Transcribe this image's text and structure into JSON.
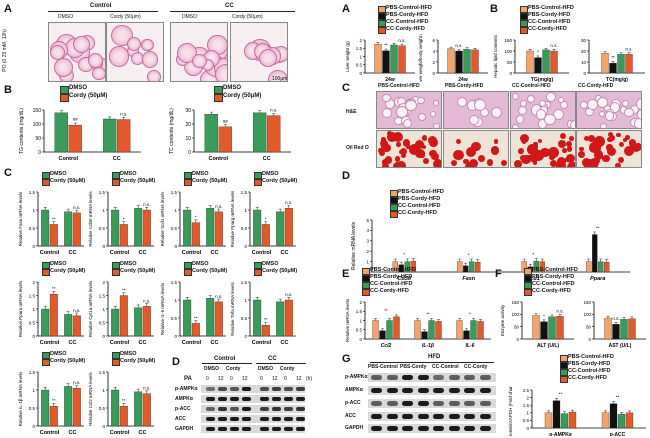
{
  "colors": {
    "dmso": "#3a9a5a",
    "cordy": "#e05a2b",
    "pbs_control": "#f4a46a",
    "pbs_cordy": "#111111",
    "cc_control": "#3a9a5a",
    "cc_cordy": "#e05a2b",
    "he_stain": "#c86ca6",
    "oil_red": "#d01818"
  },
  "left": {
    "A": {
      "label": "A",
      "header_control": "Control",
      "header_cc": "CC",
      "cols": [
        "DMSO",
        "Cordy (50μm)",
        "DMSO",
        "Cordy (50μm)"
      ],
      "ylabel": "PO (0.25 mM, 12h)",
      "scale": "100μm"
    },
    "B": {
      "label": "B",
      "legend": [
        "DMSO",
        "Cordy (50μM)"
      ]
    },
    "C": {
      "label": "C",
      "legend": [
        "DMSO",
        "Cordy (50μM)"
      ]
    },
    "D": {
      "label": "D",
      "header_control": "Control",
      "header_cc": "CC",
      "cond_row": [
        "DMSO",
        "Cordy",
        "DMSO",
        "Cordy"
      ],
      "pa_label": "PA",
      "pa_times": [
        "0",
        "12",
        "0",
        "12",
        "0",
        "12",
        "0",
        "12"
      ],
      "unit": "(h)",
      "rows": [
        "p-AMPKα",
        "AMPKα",
        "p-ACC",
        "ACC",
        "GAPDH"
      ]
    }
  },
  "right": {
    "A": {
      "label": "A",
      "legend": [
        "PBS-Control-HFD",
        "PBS-Cordy-HFD",
        "CC-Control-HFD",
        "CC-Cordy-HFD"
      ]
    },
    "B": {
      "label": "B",
      "legend": [
        "PBS-Control-HFD",
        "PBS-Cordy-HFD",
        "CC-Control-HFD",
        "CC-Cordy-HFD"
      ]
    },
    "C": {
      "label": "C",
      "cols": [
        "PBS-Control-HFD",
        "PBS-Cordy-HFD",
        "CC-Control-HFD",
        "CC-Cordy-HFD"
      ],
      "rows": [
        "H&E",
        "Oil Red O"
      ]
    },
    "D": {
      "label": "D",
      "legend": [
        "PBS-Control-HFD",
        "PBS-Cordy-HFD",
        "CC-Control-HFD",
        "CC-Cordy-HFD"
      ]
    },
    "E": {
      "label": "E",
      "legend": [
        "PBS-Control-HFD",
        "PBS-Cordy-HFD",
        "CC-Control-HFD",
        "CC-Cordy-HFD"
      ]
    },
    "F": {
      "label": "F",
      "legend": [
        "PBS-Control-HFD",
        "PBS-Cordy-HFD",
        "CC-Control-HFD",
        "CC-Cordy-HFD"
      ]
    },
    "G": {
      "label": "G",
      "header": "HFD",
      "cols": [
        "PBS-Control",
        "PBS-Cordy",
        "CC-Control",
        "CC-Cordy"
      ],
      "rows": [
        "p-AMPKα",
        "AMPKα",
        "p-ACC",
        "ACC",
        "GAPDH"
      ],
      "legend": [
        "PBS-Control-HFD",
        "PBS-Cordy-HFD",
        "CC-Control-HFD",
        "CC-Cordy-HFD"
      ]
    }
  },
  "chart_data": [
    {
      "id": "L-B1",
      "type": "bar",
      "ylabel": "TG contents (mg/dL)",
      "ylim": [
        0,
        150
      ],
      "yticks": [
        0,
        50,
        100,
        150
      ],
      "categories": [
        "Control",
        "CC"
      ],
      "series": [
        {
          "name": "DMSO",
          "values": [
            140,
            118
          ]
        },
        {
          "name": "Cordy (50μM)",
          "values": [
            96,
            116
          ]
        }
      ],
      "annotations": [
        "##",
        "n.s."
      ]
    },
    {
      "id": "L-B2",
      "type": "bar",
      "ylabel": "TC contents (mg/dL)",
      "ylim": [
        0,
        30
      ],
      "yticks": [
        0,
        10,
        20,
        30
      ],
      "categories": [
        "Control",
        "CC"
      ],
      "series": [
        {
          "name": "DMSO",
          "values": [
            27,
            28
          ]
        },
        {
          "name": "Cordy (50μM)",
          "values": [
            18,
            26
          ]
        }
      ],
      "annotations": [
        "##",
        "n.s."
      ]
    },
    {
      "id": "L-C1",
      "type": "bar",
      "ylabel": "Relative Fasn mRNA levels",
      "ylim": [
        0,
        1.5
      ],
      "yticks": [
        0,
        0.5,
        1.0,
        1.5
      ],
      "categories": [
        "Control",
        "CC"
      ],
      "series": [
        {
          "name": "DMSO",
          "values": [
            1.0,
            0.95
          ]
        },
        {
          "name": "Cordy (50μM)",
          "values": [
            0.6,
            0.92
          ]
        }
      ],
      "annotations": [
        "**",
        "n.s."
      ]
    },
    {
      "id": "L-C2",
      "type": "bar",
      "ylabel": "Relative Cd36 mRNA levels",
      "ylim": [
        0,
        1.5
      ],
      "yticks": [
        0,
        0.5,
        1.0,
        1.5
      ],
      "categories": [
        "Control",
        "CC"
      ],
      "series": [
        {
          "name": "DMSO",
          "values": [
            1.0,
            1.05
          ]
        },
        {
          "name": "Cordy (50μM)",
          "values": [
            0.6,
            1.0
          ]
        }
      ],
      "annotations": [
        "*",
        "n.s."
      ]
    },
    {
      "id": "L-C3",
      "type": "bar",
      "ylabel": "Relative Scd1 mRNA levels",
      "ylim": [
        0,
        1.5
      ],
      "yticks": [
        0,
        0.5,
        1.0,
        1.5
      ],
      "categories": [
        "Control",
        "CC"
      ],
      "series": [
        {
          "name": "DMSO",
          "values": [
            1.0,
            1.05
          ]
        },
        {
          "name": "Cordy (50μM)",
          "values": [
            0.65,
            0.95
          ]
        }
      ],
      "annotations": [
        "*",
        "n.s."
      ]
    },
    {
      "id": "L-C4",
      "type": "bar",
      "ylabel": "Relative Pparg mRNA levels",
      "ylim": [
        0,
        1.5
      ],
      "yticks": [
        0,
        0.5,
        1.0,
        1.5
      ],
      "categories": [
        "Control",
        "CC"
      ],
      "series": [
        {
          "name": "DMSO",
          "values": [
            1.0,
            0.95
          ]
        },
        {
          "name": "Cordy (50μM)",
          "values": [
            0.6,
            1.05
          ]
        }
      ],
      "annotations": [
        "*",
        "n.s."
      ]
    },
    {
      "id": "L-C5",
      "type": "bar",
      "ylabel": "Relative Ppara mRNA levels",
      "ylim": [
        0,
        2.0
      ],
      "yticks": [
        0,
        0.5,
        1.0,
        1.5,
        2.0
      ],
      "categories": [
        "Control",
        "CC"
      ],
      "series": [
        {
          "name": "DMSO",
          "values": [
            1.0,
            0.8
          ]
        },
        {
          "name": "Cordy (50μM)",
          "values": [
            1.55,
            0.75
          ]
        }
      ],
      "annotations": [
        "**",
        "n.s."
      ]
    },
    {
      "id": "L-C6",
      "type": "bar",
      "ylabel": "Relative Cpt1a mRNA levels",
      "ylim": [
        0,
        2.0
      ],
      "yticks": [
        0,
        0.5,
        1.0,
        1.5,
        2.0
      ],
      "categories": [
        "Control",
        "CC"
      ],
      "series": [
        {
          "name": "DMSO",
          "values": [
            1.0,
            1.05
          ]
        },
        {
          "name": "Cordy (50μM)",
          "values": [
            1.5,
            1.1
          ]
        }
      ],
      "annotations": [
        "**",
        "n.s."
      ]
    },
    {
      "id": "L-C7",
      "type": "bar",
      "ylabel": "Relative IL-6 mRNA levels",
      "ylim": [
        0,
        1.5
      ],
      "yticks": [
        0,
        0.5,
        1.0,
        1.5
      ],
      "categories": [
        "Control",
        "CC"
      ],
      "series": [
        {
          "name": "DMSO",
          "values": [
            1.0,
            1.05
          ]
        },
        {
          "name": "Cordy (50μM)",
          "values": [
            0.35,
            0.95
          ]
        }
      ],
      "annotations": [
        "**",
        "n.s."
      ]
    },
    {
      "id": "L-C8",
      "type": "bar",
      "ylabel": "Relative Tnfa mRNA levels",
      "ylim": [
        0,
        1.5
      ],
      "yticks": [
        0,
        0.5,
        1.0,
        1.5
      ],
      "categories": [
        "Control",
        "CC"
      ],
      "series": [
        {
          "name": "DMSO",
          "values": [
            1.0,
            0.95
          ]
        },
        {
          "name": "Cordy (50μM)",
          "values": [
            0.3,
            1.0
          ]
        }
      ],
      "annotations": [
        "**",
        "n.s."
      ]
    },
    {
      "id": "L-C9",
      "type": "bar",
      "ylabel": "Relative IL-1β mRNA levels",
      "ylim": [
        0,
        1.5
      ],
      "yticks": [
        0,
        0.5,
        1.0,
        1.5
      ],
      "categories": [
        "Control",
        "CC"
      ],
      "series": [
        {
          "name": "DMSO",
          "values": [
            1.0,
            1.1
          ]
        },
        {
          "name": "Cordy (50μM)",
          "values": [
            0.55,
            1.05
          ]
        }
      ],
      "annotations": [
        "**",
        "n.s."
      ]
    },
    {
      "id": "L-C10",
      "type": "bar",
      "ylabel": "Relative Ccl2 mRNA levels",
      "ylim": [
        0,
        1.5
      ],
      "yticks": [
        0,
        0.5,
        1.0,
        1.5
      ],
      "categories": [
        "Control",
        "CC"
      ],
      "series": [
        {
          "name": "DMSO",
          "values": [
            1.0,
            0.95
          ]
        },
        {
          "name": "Cordy (50μM)",
          "values": [
            0.55,
            0.9
          ]
        }
      ],
      "annotations": [
        "**",
        "n.s."
      ]
    },
    {
      "id": "R-A1",
      "type": "bar",
      "ylabel": "Liver weight (g)",
      "ylim": [
        0,
        2.0
      ],
      "yticks": [
        0,
        0.5,
        1.0,
        1.5,
        2.0
      ],
      "categories": [
        "24w"
      ],
      "series": [
        {
          "name": "PBS-Control-HFD",
          "values": [
            1.75
          ]
        },
        {
          "name": "PBS-Cordy-HFD",
          "values": [
            1.35
          ]
        },
        {
          "name": "CC-Control-HFD",
          "values": [
            1.7
          ]
        },
        {
          "name": "CC-Cordy-HFD",
          "values": [
            1.65
          ]
        }
      ],
      "annotations": [
        "**",
        "n.s."
      ]
    },
    {
      "id": "R-A2",
      "type": "bar",
      "ylabel": "Liver weight/body weight (%)",
      "ylim": [
        0,
        6
      ],
      "yticks": [
        0,
        2,
        4,
        6
      ],
      "categories": [
        "24w"
      ],
      "series": [
        {
          "name": "PBS-Control-HFD",
          "values": [
            4.4
          ]
        },
        {
          "name": "PBS-Cordy-HFD",
          "values": [
            4.0
          ]
        },
        {
          "name": "CC-Control-HFD",
          "values": [
            4.3
          ]
        },
        {
          "name": "CC-Cordy-HFD",
          "values": [
            4.2
          ]
        }
      ],
      "annotations": [
        "n.s."
      ]
    },
    {
      "id": "R-B1",
      "type": "bar",
      "ylabel": "Hepatic lipid contents",
      "ylim": [
        0,
        150
      ],
      "yticks": [
        0,
        50,
        100,
        150
      ],
      "categories": [
        "TG(mg/g)"
      ],
      "series": [
        {
          "name": "PBS-Control-HFD",
          "values": [
            100
          ]
        },
        {
          "name": "PBS-Cordy-HFD",
          "values": [
            70
          ]
        },
        {
          "name": "CC-Control-HFD",
          "values": [
            105
          ]
        },
        {
          "name": "CC-Cordy-HFD",
          "values": [
            100
          ]
        }
      ],
      "annotations": [
        "*",
        "n.s."
      ]
    },
    {
      "id": "R-B2",
      "type": "bar",
      "ylabel": "",
      "ylim": [
        0,
        30
      ],
      "yticks": [
        0,
        10,
        20,
        30
      ],
      "categories": [
        "TC(mg/g)"
      ],
      "series": [
        {
          "name": "PBS-Control-HFD",
          "values": [
            18
          ]
        },
        {
          "name": "PBS-Cordy-HFD",
          "values": [
            9
          ]
        },
        {
          "name": "CC-Control-HFD",
          "values": [
            17
          ]
        },
        {
          "name": "CC-Cordy-HFD",
          "values": [
            17
          ]
        }
      ],
      "annotations": [
        "**",
        "n.s."
      ]
    },
    {
      "id": "R-D",
      "type": "bar",
      "ylabel": "Relative mRNA levels",
      "ylim": [
        0,
        5
      ],
      "yticks": [
        0,
        1,
        2,
        3,
        4,
        5
      ],
      "categories": [
        "Cd36",
        "Fasn",
        "Scd1",
        "Ppara"
      ],
      "series": [
        {
          "name": "PBS-Control-HFD",
          "values": [
            1.0,
            1.0,
            1.0,
            1.0
          ]
        },
        {
          "name": "PBS-Cordy-HFD",
          "values": [
            0.7,
            0.6,
            0.5,
            3.6
          ]
        },
        {
          "name": "CC-Control-HFD",
          "values": [
            1.0,
            1.0,
            1.05,
            1.0
          ]
        },
        {
          "name": "CC-Cordy-HFD",
          "values": [
            1.05,
            0.95,
            1.0,
            0.95
          ]
        }
      ],
      "annotations": [
        "*",
        "*",
        "*",
        "**"
      ]
    },
    {
      "id": "R-E",
      "type": "bar",
      "ylabel": "Relative mRNA levels",
      "ylim": [
        0,
        2.0
      ],
      "yticks": [
        0,
        0.5,
        1.0,
        1.5,
        2.0
      ],
      "categories": [
        "Ccl2",
        "IL-1β",
        "IL-6"
      ],
      "series": [
        {
          "name": "PBS-Control-HFD",
          "values": [
            1.0,
            1.0,
            1.0
          ]
        },
        {
          "name": "PBS-Cordy-HFD",
          "values": [
            0.45,
            0.4,
            0.45
          ]
        },
        {
          "name": "CC-Control-HFD",
          "values": [
            1.0,
            1.0,
            1.0
          ]
        },
        {
          "name": "CC-Cordy-HFD",
          "values": [
            1.2,
            0.95,
            0.95
          ]
        }
      ],
      "annotations": [
        "**",
        "**",
        "*"
      ]
    },
    {
      "id": "R-F1",
      "type": "bar",
      "ylabel": "Enzyme activity",
      "ylim": [
        0,
        150
      ],
      "yticks": [
        0,
        50,
        100,
        150
      ],
      "categories": [
        "ALT (U/L)"
      ],
      "series": [
        {
          "name": "PBS-Control-HFD",
          "values": [
            95
          ]
        },
        {
          "name": "PBS-Cordy-HFD",
          "values": [
            70
          ]
        },
        {
          "name": "CC-Control-HFD",
          "values": [
            90
          ]
        },
        {
          "name": "CC-Cordy-HFD",
          "values": [
            92
          ]
        }
      ],
      "annotations": [
        "*",
        "n.s."
      ]
    },
    {
      "id": "R-F2",
      "type": "bar",
      "ylabel": "",
      "ylim": [
        0,
        150
      ],
      "yticks": [
        0,
        50,
        100,
        150
      ],
      "categories": [
        "AST (U/L)"
      ],
      "series": [
        {
          "name": "PBS-Control-HFD",
          "values": [
            85
          ]
        },
        {
          "name": "PBS-Cordy-HFD",
          "values": [
            60
          ]
        },
        {
          "name": "CC-Control-HFD",
          "values": [
            80
          ]
        },
        {
          "name": "CC-Cordy-HFD",
          "values": [
            82
          ]
        }
      ],
      "annotations": [
        "n.s."
      ]
    },
    {
      "id": "R-G",
      "type": "bar",
      "ylabel": "Protein/GAPDH (Fold change)",
      "ylim": [
        0,
        2.5
      ],
      "yticks": [
        0,
        0.5,
        1.0,
        1.5,
        2.0,
        2.5
      ],
      "categories": [
        "p-AMPKα",
        "p-ACC"
      ],
      "series": [
        {
          "name": "PBS-Control-HFD",
          "values": [
            1.0,
            1.0
          ]
        },
        {
          "name": "PBS-Cordy-HFD",
          "values": [
            1.8,
            1.6
          ]
        },
        {
          "name": "CC-Control-HFD",
          "values": [
            0.95,
            0.9
          ]
        },
        {
          "name": "CC-Cordy-HFD",
          "values": [
            1.05,
            1.0
          ]
        }
      ],
      "annotations": [
        "**",
        "**"
      ]
    }
  ]
}
